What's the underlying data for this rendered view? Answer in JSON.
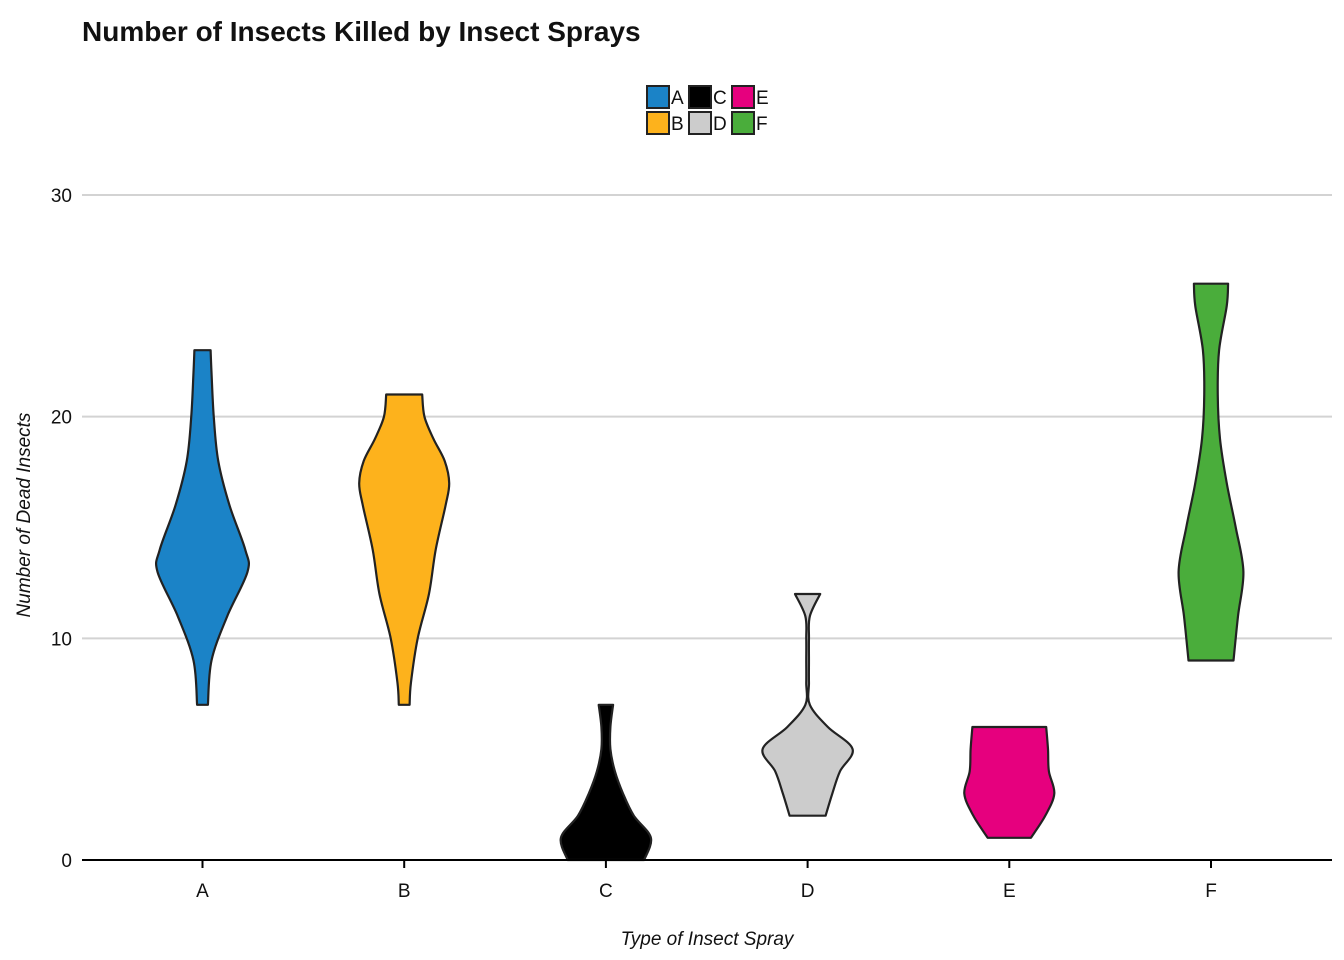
{
  "chart_data": {
    "type": "violin",
    "title": "Number of Insects Killed by Insect Sprays",
    "xlabel": "Type of Insect Spray",
    "ylabel": "Number of Dead Insects",
    "ylim": [
      0,
      30
    ],
    "yticks": [
      0,
      10,
      20,
      30
    ],
    "grid": true,
    "legend_position": "top",
    "categories": [
      "A",
      "B",
      "C",
      "D",
      "E",
      "F"
    ],
    "series": [
      {
        "name": "A",
        "color": "#1b83c7",
        "min": 7,
        "max": 23,
        "profile": [
          [
            7,
            0.12
          ],
          [
            9,
            0.2
          ],
          [
            11,
            0.55
          ],
          [
            13,
            1.0
          ],
          [
            14,
            0.95
          ],
          [
            16,
            0.6
          ],
          [
            18,
            0.35
          ],
          [
            20,
            0.25
          ],
          [
            22,
            0.2
          ],
          [
            23,
            0.18
          ]
        ]
      },
      {
        "name": "B",
        "color": "#fdb21c",
        "min": 7,
        "max": 21,
        "profile": [
          [
            7,
            0.12
          ],
          [
            8,
            0.15
          ],
          [
            10,
            0.3
          ],
          [
            12,
            0.55
          ],
          [
            14,
            0.7
          ],
          [
            16,
            0.92
          ],
          [
            17,
            1.0
          ],
          [
            18,
            0.9
          ],
          [
            19,
            0.65
          ],
          [
            20,
            0.45
          ],
          [
            21,
            0.4
          ]
        ]
      },
      {
        "name": "C",
        "color": "#000000",
        "min": 0,
        "max": 7,
        "profile": [
          [
            0,
            0.85
          ],
          [
            1,
            1.0
          ],
          [
            2,
            0.62
          ],
          [
            3,
            0.38
          ],
          [
            4,
            0.2
          ],
          [
            5,
            0.1
          ],
          [
            6,
            0.1
          ],
          [
            7,
            0.16
          ]
        ]
      },
      {
        "name": "D",
        "color": "#cccccc",
        "min": 2,
        "max": 12,
        "profile": [
          [
            2,
            0.4
          ],
          [
            3,
            0.55
          ],
          [
            4,
            0.72
          ],
          [
            5,
            1.0
          ],
          [
            6,
            0.45
          ],
          [
            7,
            0.05
          ],
          [
            8,
            0.03
          ],
          [
            9,
            0.03
          ],
          [
            10,
            0.03
          ],
          [
            11,
            0.05
          ],
          [
            12,
            0.28
          ]
        ]
      },
      {
        "name": "E",
        "color": "#e6007e",
        "min": 1,
        "max": 6,
        "profile": [
          [
            1,
            0.48
          ],
          [
            2,
            0.8
          ],
          [
            3,
            1.0
          ],
          [
            4,
            0.88
          ],
          [
            5,
            0.86
          ],
          [
            6,
            0.82
          ]
        ]
      },
      {
        "name": "F",
        "color": "#4aad3b",
        "min": 9,
        "max": 26,
        "profile": [
          [
            9,
            0.5
          ],
          [
            11,
            0.6
          ],
          [
            13,
            0.72
          ],
          [
            15,
            0.55
          ],
          [
            17,
            0.35
          ],
          [
            19,
            0.2
          ],
          [
            21,
            0.15
          ],
          [
            23,
            0.18
          ],
          [
            25,
            0.35
          ],
          [
            26,
            0.38
          ]
        ]
      }
    ]
  }
}
